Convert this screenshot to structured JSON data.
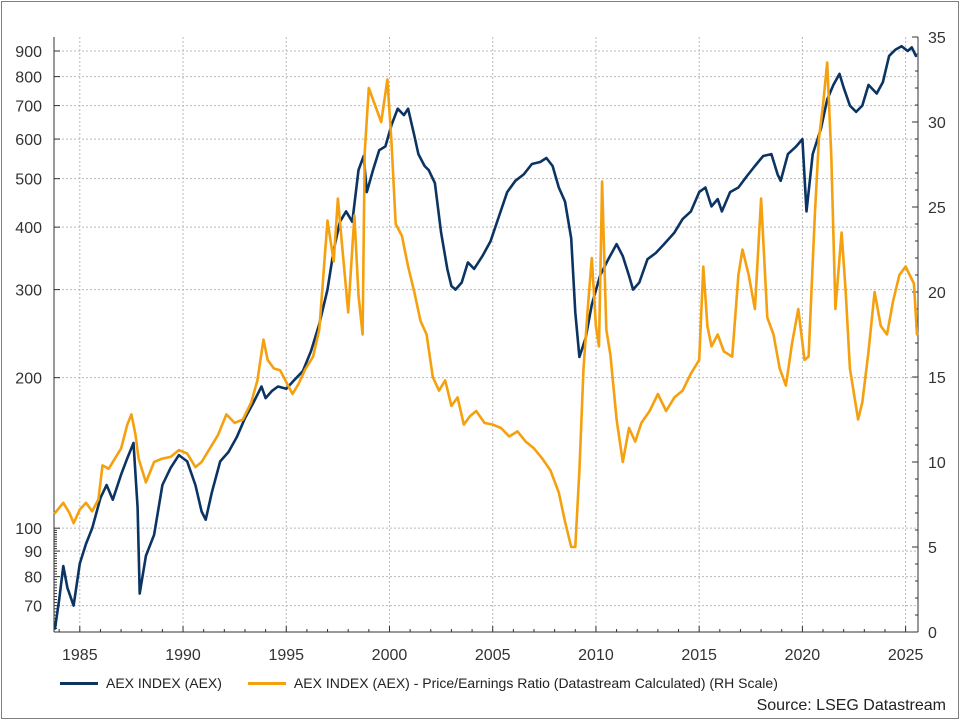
{
  "chart_data": {
    "type": "line",
    "title": "",
    "source": "Source: LSEG Datastream",
    "x_ticks": [
      "1985",
      "1990",
      "1995",
      "2000",
      "2005",
      "2010",
      "2015",
      "2020",
      "2025"
    ],
    "xlim": [
      1983.75,
      2025.6
    ],
    "y_left": {
      "scale": "log",
      "lim": [
        62,
        960
      ],
      "ticks": [
        "70",
        "80",
        "90",
        "100",
        "200",
        "300",
        "400",
        "500",
        "600",
        "700",
        "800",
        "900"
      ]
    },
    "y_right": {
      "scale": "linear",
      "lim": [
        0,
        35
      ],
      "ticks": [
        "0",
        "5",
        "10",
        "15",
        "20",
        "25",
        "30",
        "35"
      ]
    },
    "grid": true,
    "legend_position": "bottom",
    "colors": {
      "index": "#0b3463",
      "pe": "#f5a00f"
    },
    "series": [
      {
        "name": "AEX INDEX (AEX)",
        "axis": "left",
        "x": [
          1983.8,
          1984.0,
          1984.2,
          1984.4,
          1984.7,
          1985.0,
          1985.3,
          1985.6,
          1986.0,
          1986.3,
          1986.6,
          1987.0,
          1987.3,
          1987.6,
          1987.8,
          1987.9,
          1988.2,
          1988.6,
          1989.0,
          1989.4,
          1989.8,
          1990.2,
          1990.6,
          1990.9,
          1991.1,
          1991.4,
          1991.8,
          1992.2,
          1992.6,
          1993.0,
          1993.4,
          1993.8,
          1994.0,
          1994.3,
          1994.6,
          1995.0,
          1995.4,
          1995.8,
          1996.2,
          1996.6,
          1997.0,
          1997.3,
          1997.6,
          1997.9,
          1998.2,
          1998.5,
          1998.75,
          1998.9,
          1999.2,
          1999.5,
          1999.8,
          2000.1,
          2000.4,
          2000.7,
          2000.9,
          2001.2,
          2001.4,
          2001.7,
          2001.9,
          2002.2,
          2002.5,
          2002.8,
          2003.0,
          2003.2,
          2003.5,
          2003.8,
          2004.1,
          2004.5,
          2004.9,
          2005.3,
          2005.7,
          2006.1,
          2006.5,
          2006.9,
          2007.3,
          2007.6,
          2007.9,
          2008.2,
          2008.5,
          2008.8,
          2009.0,
          2009.2,
          2009.5,
          2009.8,
          2010.2,
          2010.6,
          2011.0,
          2011.3,
          2011.6,
          2011.8,
          2012.1,
          2012.5,
          2012.9,
          2013.3,
          2013.8,
          2014.2,
          2014.6,
          2015.0,
          2015.3,
          2015.6,
          2015.9,
          2016.1,
          2016.5,
          2016.9,
          2017.3,
          2017.7,
          2018.1,
          2018.5,
          2018.8,
          2018.95,
          2019.3,
          2019.7,
          2020.0,
          2020.2,
          2020.5,
          2020.9,
          2021.2,
          2021.5,
          2021.8,
          2022.0,
          2022.3,
          2022.6,
          2022.9,
          2023.2,
          2023.6,
          2023.9,
          2024.2,
          2024.5,
          2024.8,
          2025.1,
          2025.3,
          2025.5
        ],
        "values": [
          63,
          72,
          84,
          76,
          70,
          85,
          93,
          100,
          115,
          122,
          114,
          128,
          138,
          148,
          110,
          74,
          88,
          97,
          122,
          132,
          140,
          136,
          122,
          108,
          104,
          118,
          136,
          142,
          152,
          166,
          178,
          192,
          182,
          188,
          192,
          190,
          198,
          206,
          226,
          256,
          300,
          360,
          410,
          430,
          410,
          520,
          555,
          470,
          520,
          570,
          580,
          640,
          690,
          670,
          690,
          610,
          560,
          530,
          520,
          490,
          390,
          330,
          305,
          300,
          310,
          340,
          330,
          350,
          375,
          420,
          470,
          495,
          510,
          535,
          540,
          550,
          530,
          480,
          450,
          380,
          270,
          220,
          240,
          280,
          320,
          345,
          370,
          350,
          320,
          300,
          310,
          345,
          355,
          370,
          390,
          415,
          430,
          470,
          480,
          440,
          455,
          430,
          470,
          480,
          505,
          530,
          555,
          560,
          510,
          495,
          560,
          580,
          600,
          430,
          560,
          630,
          720,
          770,
          810,
          760,
          700,
          680,
          700,
          770,
          740,
          780,
          880,
          905,
          920,
          900,
          915,
          880
        ]
      },
      {
        "name": "AEX INDEX (AEX) - Price/Earnings Ratio (Datastream Calculated) (RH Scale)",
        "axis": "right",
        "x": [
          1983.8,
          1984.2,
          1984.5,
          1984.7,
          1985.0,
          1985.3,
          1985.6,
          1985.9,
          1986.1,
          1986.4,
          1986.7,
          1987.0,
          1987.3,
          1987.5,
          1987.7,
          1987.85,
          1988.2,
          1988.6,
          1989.0,
          1989.4,
          1989.8,
          1990.2,
          1990.6,
          1990.9,
          1991.3,
          1991.7,
          1992.1,
          1992.5,
          1992.9,
          1993.3,
          1993.6,
          1993.9,
          1994.1,
          1994.4,
          1994.7,
          1995.0,
          1995.3,
          1995.6,
          1995.9,
          1996.3,
          1996.6,
          1997.0,
          1997.3,
          1997.5,
          1997.7,
          1998.0,
          1998.3,
          1998.5,
          1998.7,
          1998.8,
          1999.0,
          1999.3,
          1999.6,
          1999.9,
          2000.1,
          2000.3,
          2000.6,
          2000.9,
          2001.2,
          2001.5,
          2001.8,
          2002.1,
          2002.4,
          2002.7,
          2003.0,
          2003.3,
          2003.6,
          2003.9,
          2004.2,
          2004.6,
          2005.0,
          2005.4,
          2005.8,
          2006.2,
          2006.6,
          2007.0,
          2007.4,
          2007.8,
          2008.2,
          2008.5,
          2008.8,
          2009.0,
          2009.2,
          2009.4,
          2009.6,
          2009.8,
          2010.0,
          2010.15,
          2010.3,
          2010.5,
          2010.7,
          2011.0,
          2011.3,
          2011.6,
          2011.9,
          2012.2,
          2012.6,
          2013.0,
          2013.4,
          2013.8,
          2014.2,
          2014.6,
          2015.0,
          2015.2,
          2015.4,
          2015.6,
          2015.9,
          2016.2,
          2016.6,
          2016.9,
          2017.1,
          2017.4,
          2017.7,
          2018.0,
          2018.3,
          2018.6,
          2018.9,
          2019.2,
          2019.5,
          2019.8,
          2020.1,
          2020.3,
          2020.6,
          2020.8,
          2021.0,
          2021.2,
          2021.4,
          2021.6,
          2021.9,
          2022.1,
          2022.3,
          2022.5,
          2022.7,
          2022.9,
          2023.2,
          2023.5,
          2023.8,
          2024.1,
          2024.4,
          2024.7,
          2025.0,
          2025.2,
          2025.4,
          2025.55
        ],
        "values": [
          7.0,
          7.6,
          7.0,
          6.4,
          7.2,
          7.6,
          7.1,
          7.8,
          9.8,
          9.6,
          10.2,
          10.8,
          12.2,
          12.8,
          11.6,
          10.2,
          8.8,
          10.0,
          10.2,
          10.3,
          10.7,
          10.5,
          9.7,
          10.0,
          10.8,
          11.6,
          12.8,
          12.3,
          12.5,
          13.5,
          14.8,
          17.2,
          16.0,
          15.5,
          15.4,
          14.7,
          14.0,
          14.6,
          15.4,
          16.2,
          17.8,
          24.2,
          21.8,
          25.5,
          22.8,
          18.8,
          24.5,
          19.8,
          17.5,
          28.2,
          32.0,
          31.0,
          30.0,
          32.5,
          28.8,
          24.0,
          23.3,
          21.5,
          20.0,
          18.3,
          17.5,
          15.0,
          14.2,
          14.8,
          13.3,
          13.8,
          12.2,
          12.7,
          13.0,
          12.3,
          12.2,
          12.0,
          11.5,
          11.8,
          11.2,
          10.8,
          10.2,
          9.5,
          8.2,
          6.5,
          5.0,
          5.0,
          9.5,
          15.5,
          19.0,
          22.0,
          18.0,
          16.8,
          26.5,
          17.8,
          16.3,
          12.5,
          10.0,
          12.0,
          11.2,
          12.3,
          13.0,
          14.0,
          13.0,
          13.8,
          14.2,
          15.2,
          16.0,
          21.5,
          18.0,
          16.8,
          17.5,
          16.5,
          16.2,
          21.0,
          22.5,
          21.0,
          19.0,
          25.5,
          18.5,
          17.5,
          15.5,
          14.5,
          17.0,
          19.0,
          16.0,
          16.2,
          24.5,
          29.0,
          31.0,
          33.5,
          28.0,
          19.0,
          23.5,
          20.0,
          15.5,
          14.0,
          12.5,
          13.5,
          16.5,
          20.0,
          18.0,
          17.5,
          19.5,
          21.0,
          21.5,
          21.0,
          20.5,
          17.5
        ]
      }
    ]
  }
}
